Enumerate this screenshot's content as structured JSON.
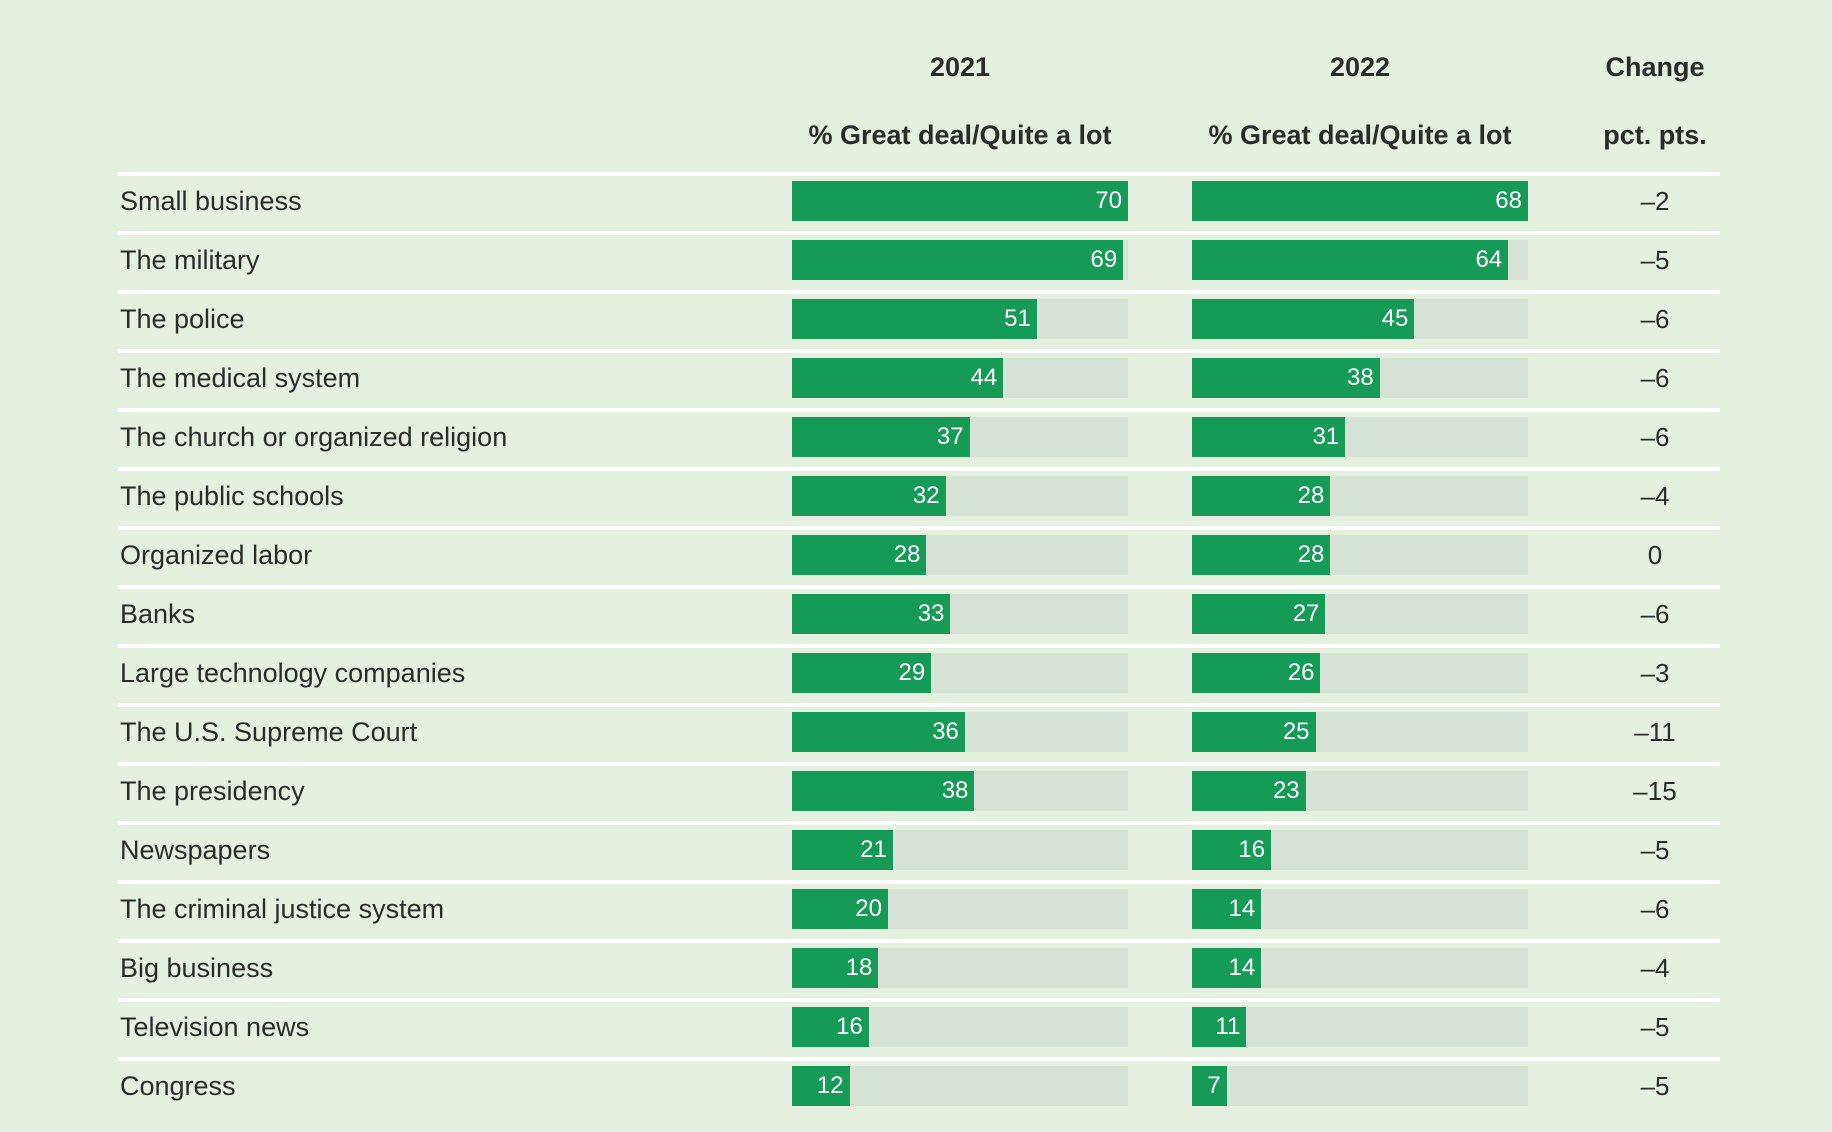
{
  "chart_data": {
    "type": "table",
    "columns": [
      {
        "year": "2021",
        "subheader": "% Great deal/Quite a lot"
      },
      {
        "year": "2022",
        "subheader": "% Great deal/Quite a lot"
      },
      {
        "year": "Change",
        "subheader": "pct. pts."
      }
    ],
    "categories": [
      "Small business",
      "The military",
      "The police",
      "The medical system",
      "The church or organized religion",
      "The public schools",
      "Organized labor",
      "Banks",
      "Large technology companies",
      "The U.S. Supreme Court",
      "The presidency",
      "Newspapers",
      "The criminal justice system",
      "Big business",
      "Television news",
      "Congress"
    ],
    "series": [
      {
        "name": "2021",
        "values": [
          70,
          69,
          51,
          44,
          37,
          32,
          28,
          33,
          29,
          36,
          38,
          21,
          20,
          18,
          16,
          12
        ]
      },
      {
        "name": "2022",
        "values": [
          68,
          64,
          45,
          38,
          31,
          28,
          28,
          27,
          26,
          25,
          23,
          16,
          14,
          14,
          11,
          7
        ]
      }
    ],
    "change": [
      "–2",
      "–5",
      "–6",
      "–6",
      "–6",
      "–4",
      "0",
      "–6",
      "–3",
      "–11",
      "–15",
      "–5",
      "–6",
      "–4",
      "–5",
      "–5"
    ],
    "colors": {
      "bar": "#159b55",
      "track": "#d6e2d5",
      "background": "#e5f0e0"
    }
  }
}
